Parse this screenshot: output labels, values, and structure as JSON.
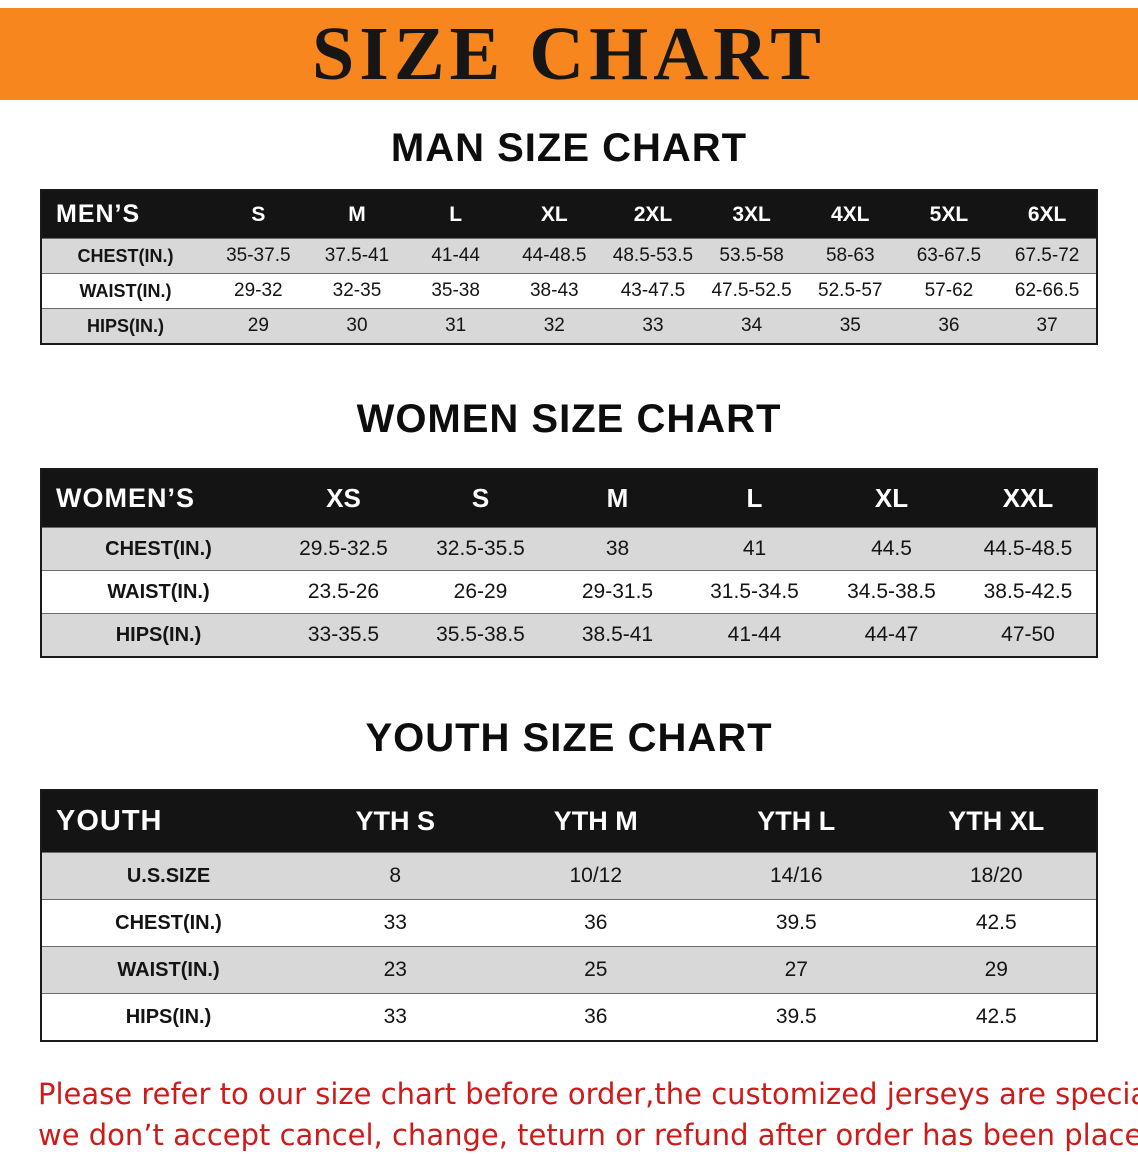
{
  "banner": {
    "title": "SIZE CHART"
  },
  "sections": [
    {
      "heading": "MAN SIZE CHART",
      "table": {
        "header": [
          "MEN’S",
          "S",
          "M",
          "L",
          "XL",
          "2XL",
          "3XL",
          "4XL",
          "5XL",
          "6XL"
        ],
        "rows": [
          [
            "CHEST(IN.)",
            "35-37.5",
            "37.5-41",
            "41-44",
            "44-48.5",
            "48.5-53.5",
            "53.5-58",
            "58-63",
            "63-67.5",
            "67.5-72"
          ],
          [
            "WAIST(IN.)",
            "29-32",
            "32-35",
            "35-38",
            "38-43",
            "43-47.5",
            "47.5-52.5",
            "52.5-57",
            "57-62",
            "62-66.5"
          ],
          [
            "HIPS(IN.)",
            "29",
            "30",
            "31",
            "32",
            "33",
            "34",
            "35",
            "36",
            "37"
          ]
        ]
      }
    },
    {
      "heading": "WOMEN SIZE CHART",
      "table": {
        "header": [
          "WOMEN’S",
          "XS",
          "S",
          "M",
          "L",
          "XL",
          "XXL"
        ],
        "rows": [
          [
            "CHEST(IN.)",
            "29.5-32.5",
            "32.5-35.5",
            "38",
            "41",
            "44.5",
            "44.5-48.5"
          ],
          [
            "WAIST(IN.)",
            "23.5-26",
            "26-29",
            "29-31.5",
            "31.5-34.5",
            "34.5-38.5",
            "38.5-42.5"
          ],
          [
            "HIPS(IN.)",
            "33-35.5",
            "35.5-38.5",
            "38.5-41",
            "41-44",
            "44-47",
            "47-50"
          ]
        ]
      }
    },
    {
      "heading": "YOUTH SIZE CHART",
      "table": {
        "header": [
          "YOUTH",
          "YTH S",
          "YTH M",
          "YTH L",
          "YTH XL"
        ],
        "rows": [
          [
            "U.S.SIZE",
            "8",
            "10/12",
            "14/16",
            "18/20"
          ],
          [
            "CHEST(IN.)",
            "33",
            "36",
            "39.5",
            "42.5"
          ],
          [
            "WAIST(IN.)",
            "23",
            "25",
            "27",
            "29"
          ],
          [
            "HIPS(IN.)",
            "33",
            "36",
            "39.5",
            "42.5"
          ]
        ]
      }
    }
  ],
  "footer": {
    "line1": "Please refer to our size chart before order,the customized jerseys are special products,",
    "line2": "we don’t accept cancel, change, teturn or refund after order has been placed!"
  },
  "colors": {
    "banner_orange": "#f6861d",
    "header_black": "#141414",
    "row_gray": "#d8d8d8",
    "footer_red": "#cf1a1a"
  }
}
